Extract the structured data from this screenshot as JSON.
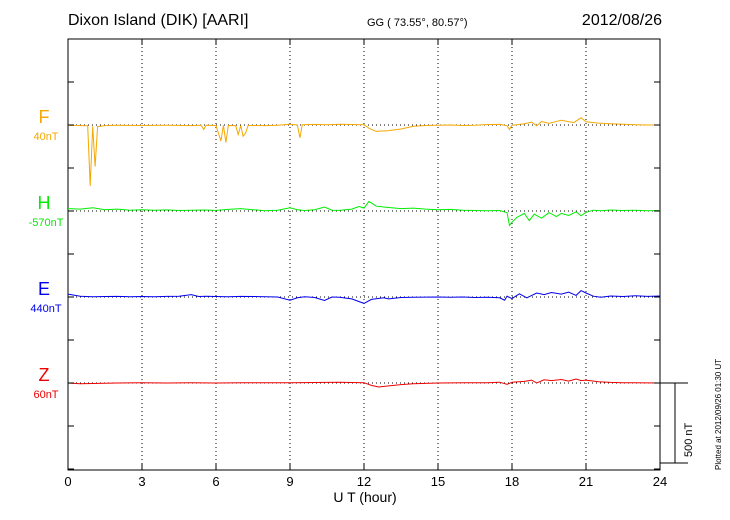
{
  "header": {
    "station": "Dixon Island (DIK)  [AARI]",
    "coords": "GG ( 73.55°,  80.57°)",
    "date": "2012/08/26"
  },
  "footer": {
    "plotted": "Plotted at 2012/09/26 01:30 UT"
  },
  "chart_data": {
    "type": "line",
    "xlabel": "U T (hour)",
    "xlim": [
      0,
      24
    ],
    "xticks": [
      0,
      3,
      6,
      9,
      12,
      15,
      18,
      21,
      24
    ],
    "scale_bar": {
      "label": "500 nT",
      "value_nT": 500
    },
    "series": [
      {
        "name": "F",
        "baseline": "40nT",
        "color": "#f5a800",
        "points": [
          [
            0,
            -2
          ],
          [
            0.8,
            -5
          ],
          [
            0.9,
            -380
          ],
          [
            1.0,
            -8
          ],
          [
            1.1,
            -260
          ],
          [
            1.2,
            -10
          ],
          [
            1.5,
            -4
          ],
          [
            2,
            -2
          ],
          [
            3,
            -3
          ],
          [
            4,
            -2
          ],
          [
            5,
            -4
          ],
          [
            5.4,
            -2
          ],
          [
            5.5,
            -28
          ],
          [
            5.6,
            -2
          ],
          [
            6,
            -3
          ],
          [
            6.2,
            -100
          ],
          [
            6.3,
            -2
          ],
          [
            6.4,
            -110
          ],
          [
            6.5,
            -3
          ],
          [
            6.8,
            -4
          ],
          [
            6.9,
            -60
          ],
          [
            7.0,
            -3
          ],
          [
            7.1,
            -70
          ],
          [
            7.2,
            -50
          ],
          [
            7.3,
            -3
          ],
          [
            8,
            -4
          ],
          [
            8.5,
            -2
          ],
          [
            9,
            5
          ],
          [
            9.3,
            0
          ],
          [
            9.4,
            -80
          ],
          [
            9.5,
            2
          ],
          [
            10,
            4
          ],
          [
            10.5,
            2
          ],
          [
            11,
            5
          ],
          [
            11.5,
            3
          ],
          [
            12,
            2
          ],
          [
            12.2,
            -20
          ],
          [
            12.5,
            -40
          ],
          [
            13,
            -35
          ],
          [
            13.5,
            -25
          ],
          [
            14,
            -8
          ],
          [
            14.5,
            -3
          ],
          [
            15,
            -2
          ],
          [
            15.5,
            0
          ],
          [
            16,
            -3
          ],
          [
            16.5,
            -2
          ],
          [
            17,
            3
          ],
          [
            17.5,
            4
          ],
          [
            17.8,
            -5
          ],
          [
            17.9,
            -28
          ],
          [
            18.0,
            -2
          ],
          [
            18.5,
            8
          ],
          [
            18.8,
            18
          ],
          [
            19.0,
            -5
          ],
          [
            19.2,
            22
          ],
          [
            19.5,
            10
          ],
          [
            20,
            30
          ],
          [
            20.5,
            15
          ],
          [
            20.8,
            45
          ],
          [
            21,
            20
          ],
          [
            21.5,
            12
          ],
          [
            22,
            8
          ],
          [
            22.5,
            5
          ],
          [
            23,
            2
          ],
          [
            23.5,
            0
          ],
          [
            24,
            0
          ]
        ]
      },
      {
        "name": "H",
        "baseline": "-570nT",
        "color": "#00ee00",
        "points": [
          [
            0,
            15
          ],
          [
            0.5,
            12
          ],
          [
            1,
            20
          ],
          [
            1.5,
            8
          ],
          [
            2,
            12
          ],
          [
            2.5,
            5
          ],
          [
            3,
            8
          ],
          [
            3.5,
            5
          ],
          [
            4,
            7
          ],
          [
            4.5,
            3
          ],
          [
            5,
            5
          ],
          [
            5.5,
            6
          ],
          [
            6,
            4
          ],
          [
            6.5,
            10
          ],
          [
            7,
            15
          ],
          [
            7.5,
            8
          ],
          [
            8,
            2
          ],
          [
            8.5,
            5
          ],
          [
            9,
            20
          ],
          [
            9.3,
            8
          ],
          [
            9.6,
            3
          ],
          [
            10,
            8
          ],
          [
            10.4,
            25
          ],
          [
            10.7,
            5
          ],
          [
            11,
            4
          ],
          [
            11.5,
            12
          ],
          [
            11.8,
            28
          ],
          [
            12,
            18
          ],
          [
            12.2,
            60
          ],
          [
            12.5,
            30
          ],
          [
            13,
            22
          ],
          [
            13.5,
            15
          ],
          [
            14,
            18
          ],
          [
            14.5,
            12
          ],
          [
            15,
            8
          ],
          [
            15.5,
            10
          ],
          [
            16,
            5
          ],
          [
            16.5,
            3
          ],
          [
            17,
            2
          ],
          [
            17.5,
            3
          ],
          [
            17.8,
            -10
          ],
          [
            17.9,
            -90
          ],
          [
            18.0,
            -70
          ],
          [
            18.2,
            -40
          ],
          [
            18.5,
            -15
          ],
          [
            18.7,
            -60
          ],
          [
            18.9,
            -20
          ],
          [
            19.2,
            -45
          ],
          [
            19.5,
            -10
          ],
          [
            19.8,
            -35
          ],
          [
            20,
            -15
          ],
          [
            20.3,
            -28
          ],
          [
            20.6,
            -5
          ],
          [
            20.8,
            -30
          ],
          [
            21,
            -8
          ],
          [
            21.3,
            5
          ],
          [
            21.6,
            2
          ],
          [
            22,
            6
          ],
          [
            22.5,
            3
          ],
          [
            23,
            5
          ],
          [
            23.5,
            2
          ],
          [
            24,
            3
          ]
        ]
      },
      {
        "name": "E",
        "baseline": "440nT",
        "color": "#0000ee",
        "points": [
          [
            0,
            18
          ],
          [
            0.5,
            5
          ],
          [
            1,
            2
          ],
          [
            1.5,
            3
          ],
          [
            2,
            4
          ],
          [
            2.5,
            2
          ],
          [
            3,
            3
          ],
          [
            3.5,
            2
          ],
          [
            4,
            4
          ],
          [
            4.5,
            5
          ],
          [
            5,
            15
          ],
          [
            5.3,
            3
          ],
          [
            5.6,
            5
          ],
          [
            6,
            3
          ],
          [
            6.5,
            2
          ],
          [
            7,
            4
          ],
          [
            7.5,
            3
          ],
          [
            8,
            1
          ],
          [
            8.5,
            0
          ],
          [
            9,
            -20
          ],
          [
            9.3,
            -5
          ],
          [
            9.6,
            2
          ],
          [
            10,
            -3
          ],
          [
            10.4,
            -22
          ],
          [
            10.7,
            0
          ],
          [
            11,
            -2
          ],
          [
            11.5,
            -12
          ],
          [
            12,
            -40
          ],
          [
            12.3,
            -15
          ],
          [
            12.8,
            -5
          ],
          [
            13,
            -12
          ],
          [
            13.5,
            -3
          ],
          [
            14,
            -2
          ],
          [
            15,
            0
          ],
          [
            15.5,
            -2
          ],
          [
            16,
            0
          ],
          [
            16.5,
            -3
          ],
          [
            17,
            -2
          ],
          [
            17.5,
            -5
          ],
          [
            17.7,
            -20
          ],
          [
            17.8,
            5
          ],
          [
            18,
            -10
          ],
          [
            18.3,
            20
          ],
          [
            18.6,
            -5
          ],
          [
            18.8,
            10
          ],
          [
            19,
            25
          ],
          [
            19.3,
            15
          ],
          [
            19.6,
            28
          ],
          [
            20,
            18
          ],
          [
            20.3,
            30
          ],
          [
            20.6,
            10
          ],
          [
            20.8,
            40
          ],
          [
            21,
            25
          ],
          [
            21.3,
            5
          ],
          [
            21.6,
            -2
          ],
          [
            22,
            6
          ],
          [
            22.5,
            3
          ],
          [
            23,
            8
          ],
          [
            23.5,
            4
          ],
          [
            24,
            6
          ]
        ]
      },
      {
        "name": "Z",
        "baseline": "60nT",
        "color": "#ee0000",
        "points": [
          [
            0,
            0
          ],
          [
            0.5,
            -5
          ],
          [
            1,
            -3
          ],
          [
            1.5,
            -2
          ],
          [
            2,
            0
          ],
          [
            3,
            1
          ],
          [
            4,
            0
          ],
          [
            5,
            1
          ],
          [
            6,
            0
          ],
          [
            7,
            2
          ],
          [
            8,
            1
          ],
          [
            9,
            1
          ],
          [
            10,
            3
          ],
          [
            11,
            5
          ],
          [
            12,
            2
          ],
          [
            12.3,
            -15
          ],
          [
            12.6,
            -25
          ],
          [
            13,
            -18
          ],
          [
            13.5,
            -10
          ],
          [
            14,
            -5
          ],
          [
            15,
            0
          ],
          [
            16,
            1
          ],
          [
            17,
            2
          ],
          [
            17.5,
            5
          ],
          [
            17.8,
            -8
          ],
          [
            18,
            5
          ],
          [
            18.5,
            10
          ],
          [
            18.8,
            18
          ],
          [
            19,
            0
          ],
          [
            19.3,
            20
          ],
          [
            19.6,
            15
          ],
          [
            20,
            22
          ],
          [
            20.3,
            12
          ],
          [
            20.6,
            25
          ],
          [
            20.8,
            15
          ],
          [
            21,
            18
          ],
          [
            21.5,
            8
          ],
          [
            22,
            4
          ],
          [
            22.5,
            2
          ],
          [
            23,
            1
          ],
          [
            24,
            0
          ]
        ]
      }
    ]
  }
}
